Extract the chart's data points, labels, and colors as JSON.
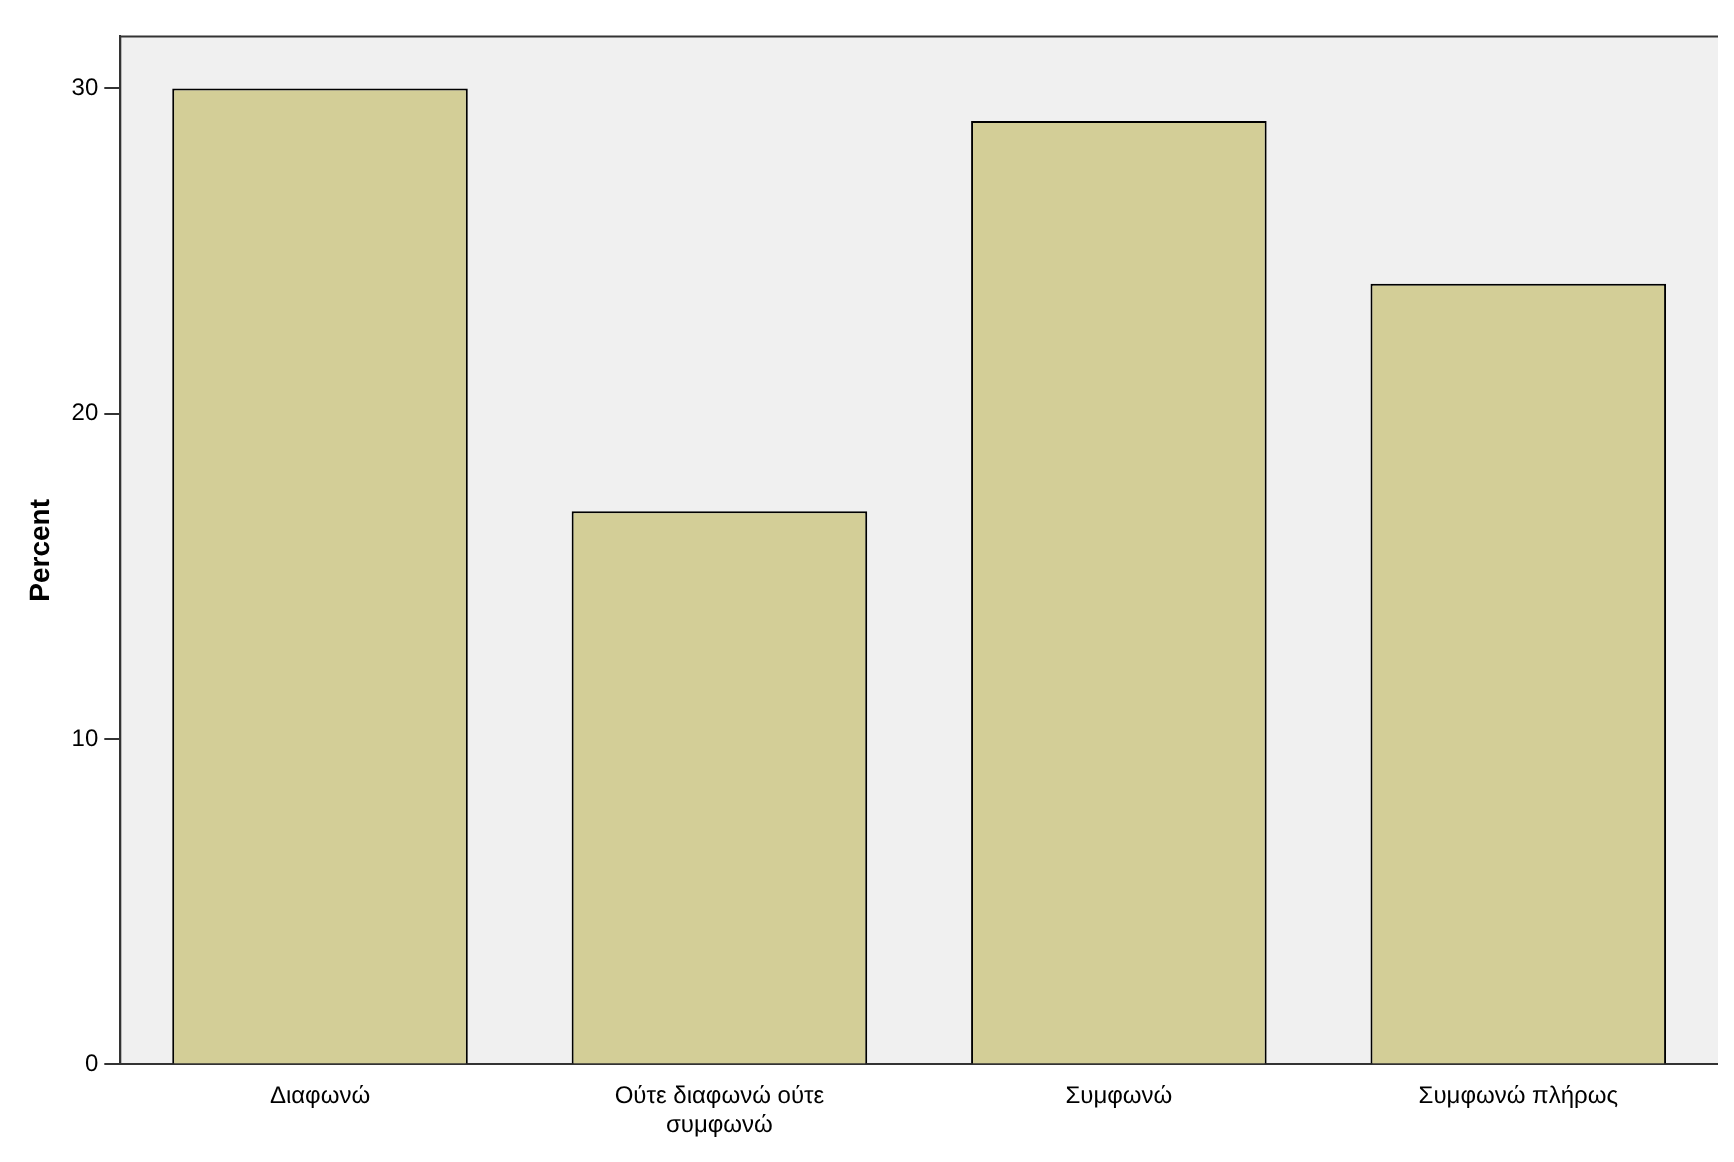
{
  "chart_data": {
    "type": "bar",
    "ylabel": "Percent",
    "categories": [
      "Διαφωνώ",
      "Ούτε διαφωνώ ούτε συμφωνώ",
      "Συμφωνώ",
      "Συμφωνώ πλήρως"
    ],
    "values": [
      30,
      17,
      29,
      24
    ],
    "color": "#d3ce97",
    "ylim": [
      0,
      31.6
    ],
    "yticks": [
      0,
      10,
      20,
      30
    ],
    "grid": false,
    "legend": false
  }
}
